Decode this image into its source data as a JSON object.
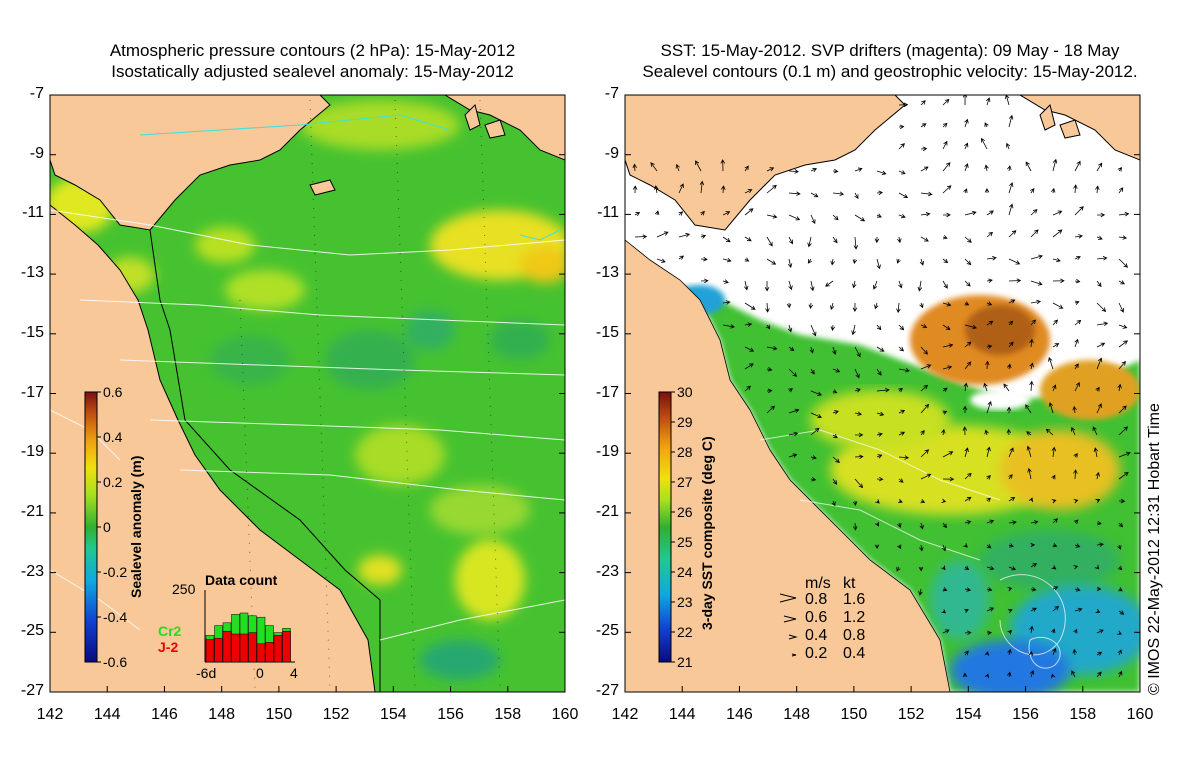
{
  "left_panel": {
    "title_line1": "Atmospheric pressure contours (2 hPa): 15-May-2012",
    "title_line2": "Isostatically adjusted sealevel anomaly: 15-May-2012",
    "lat_ticks": [
      "-7",
      "-9",
      "-11",
      "-13",
      "-15",
      "-17",
      "-19",
      "-21",
      "-23",
      "-25",
      "-27"
    ],
    "lon_ticks": [
      "142",
      "144",
      "146",
      "148",
      "150",
      "152",
      "154",
      "156",
      "158",
      "160"
    ],
    "colorbar": {
      "label": "Sealevel anomaly (m)",
      "ticks": [
        "0.6",
        "0.4",
        "0.2",
        "0",
        "-0.2",
        "-0.4",
        "-0.6"
      ],
      "range": [
        -0.6,
        0.6
      ]
    },
    "data_count": {
      "title": "Data count",
      "ymax_label": "250",
      "x_labels": [
        "-6d",
        "0",
        "4"
      ],
      "series": [
        {
          "name": "Cr2",
          "color": "#22dd22",
          "values": [
            95,
            130,
            140,
            170,
            175,
            165,
            160,
            130,
            105,
            120
          ]
        },
        {
          "name": "J-2",
          "color": "#ee0000",
          "values": [
            80,
            85,
            110,
            100,
            100,
            105,
            65,
            70,
            95,
            110
          ]
        }
      ]
    }
  },
  "right_panel": {
    "title_line1": "SST: 15-May-2012. SVP drifters (magenta): 09 May - 18 May",
    "title_line2": "Sealevel contours (0.1 m) and geostrophic velocity: 15-May-2012.",
    "lat_ticks": [
      "-7",
      "-9",
      "-11",
      "-13",
      "-15",
      "-17",
      "-19",
      "-21",
      "-23",
      "-25",
      "-27"
    ],
    "lon_ticks": [
      "142",
      "144",
      "146",
      "148",
      "150",
      "152",
      "154",
      "156",
      "158",
      "160"
    ],
    "colorbar": {
      "label": "3-day SST composite (deg C)",
      "ticks": [
        "30",
        "29",
        "28",
        "27",
        "26",
        "25",
        "24",
        "23",
        "22",
        "21"
      ],
      "range": [
        21,
        30
      ]
    },
    "velocity_legend": {
      "header_ms": "m/s",
      "header_kt": "kt",
      "rows": [
        {
          "ms": "0.8",
          "kt": "1.6"
        },
        {
          "ms": "0.6",
          "kt": "1.2"
        },
        {
          "ms": "0.4",
          "kt": "0.8"
        },
        {
          "ms": "0.2",
          "kt": "0.4"
        }
      ]
    }
  },
  "credit": "© IMOS 22-May-2012 12:31 Hobart Time",
  "colors": {
    "land": "#f8c898",
    "sla_green": "#44c030",
    "sla_yellow": "#d8e820",
    "sst_warm": "#e08a20",
    "sst_cold": "#1a66dd"
  }
}
